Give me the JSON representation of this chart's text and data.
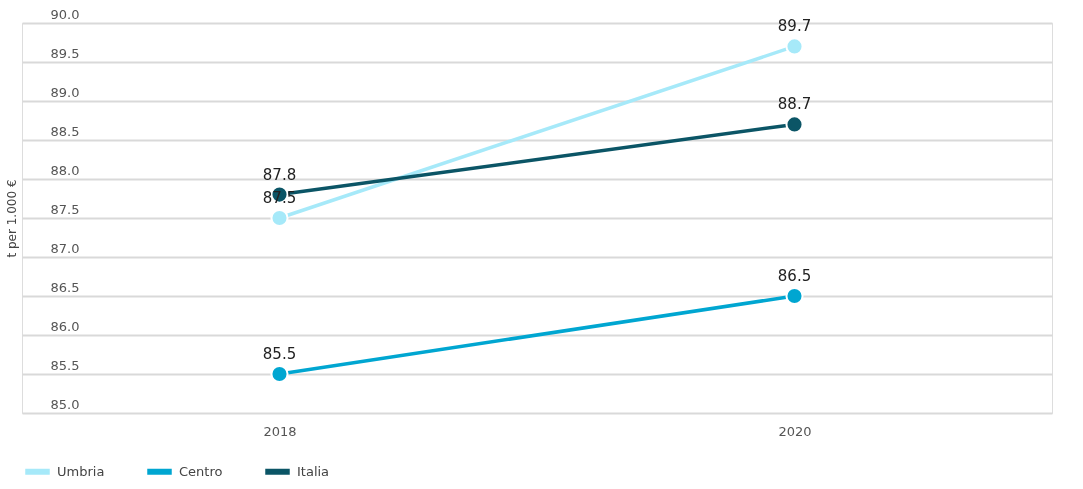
{
  "chart_data": {
    "type": "line",
    "ylabel": "t per 1.000 €",
    "categories": [
      "2018",
      "2020"
    ],
    "series": [
      {
        "name": "Umbria",
        "color": "#a6e9f9",
        "values": [
          87.5,
          89.7
        ]
      },
      {
        "name": "Centro",
        "color": "#00a6d1",
        "values": [
          85.5,
          86.5
        ]
      },
      {
        "name": "Italia",
        "color": "#0b5566",
        "values": [
          87.8,
          88.7
        ]
      }
    ],
    "ylim": [
      85.0,
      90.0
    ],
    "yticks": [
      {
        "value": 85,
        "label": "85.0"
      },
      85.5,
      {
        "value": 86,
        "label": "86.0"
      },
      86.5,
      {
        "value": 87,
        "label": "87.0"
      },
      87.5,
      {
        "value": 88,
        "label": "88.0"
      },
      88.5,
      {
        "value": 89,
        "label": "89.0"
      },
      89.5,
      {
        "value": 90,
        "label": "90.0"
      }
    ],
    "grid": "y",
    "legend": "bottom",
    "marker": "circle",
    "line_style": "solid",
    "data_labels": true
  }
}
